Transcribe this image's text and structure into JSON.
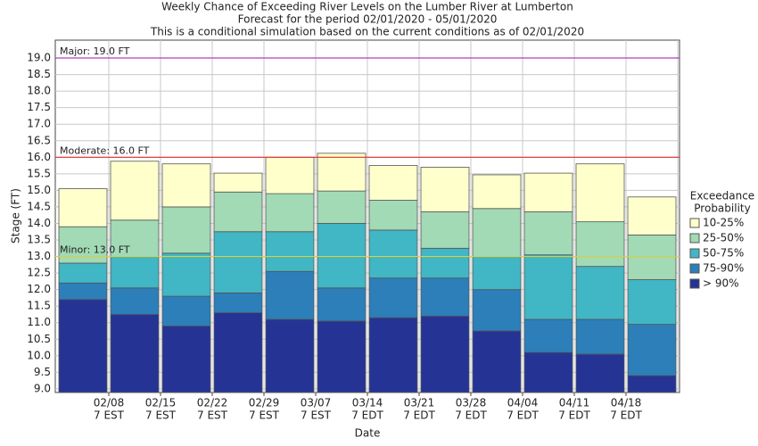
{
  "chart_data": {
    "type": "floating-bar",
    "title": "Weekly Chance of Exceeding River Levels on the Lumber River at Lumberton",
    "subtitle": "Forecast for the period 02/01/2020 - 05/01/2020",
    "subtitle2": "This is a conditional simulation based on the current conditions as of 02/01/2020",
    "x_label": "Date",
    "y_label": "Stage (FT)",
    "legend_title": [
      "Exceedance",
      "Probability"
    ],
    "categories": [
      [
        "02/08",
        "7 EST"
      ],
      [
        "02/15",
        "7 EST"
      ],
      [
        "02/22",
        "7 EST"
      ],
      [
        "02/29",
        "7 EST"
      ],
      [
        "03/07",
        "7 EST"
      ],
      [
        "03/14",
        "7 EDT"
      ],
      [
        "03/21",
        "7 EDT"
      ],
      [
        "03/28",
        "7 EDT"
      ],
      [
        "04/04",
        "7 EDT"
      ],
      [
        "04/11",
        "7 EDT"
      ],
      [
        "04/18",
        "7 EDT"
      ],
      null
    ],
    "series": [
      {
        "name": "> 90%",
        "color": "#253494",
        "values": [
          11.7,
          11.25,
          10.9,
          11.3,
          11.1,
          11.05,
          11.15,
          11.2,
          10.75,
          10.1,
          10.05,
          9.4
        ]
      },
      {
        "name": "75-90%",
        "color": "#2c7fb8",
        "values": [
          12.2,
          12.05,
          11.8,
          11.9,
          12.55,
          12.05,
          12.35,
          12.35,
          12.0,
          11.1,
          11.1,
          10.95
        ]
      },
      {
        "name": "50-75%",
        "color": "#41b6c4",
        "values": [
          12.8,
          13.0,
          13.1,
          13.75,
          13.75,
          14.0,
          13.8,
          13.25,
          13.0,
          13.05,
          12.7,
          12.3
        ]
      },
      {
        "name": "25-50%",
        "color": "#a1dab4",
        "values": [
          13.9,
          14.1,
          14.5,
          14.95,
          14.9,
          14.98,
          14.7,
          14.35,
          14.45,
          14.35,
          14.05,
          13.65
        ]
      },
      {
        "name": "10-25%",
        "color": "#ffffcc",
        "values": [
          15.05,
          15.88,
          15.8,
          15.52,
          16.0,
          16.12,
          15.75,
          15.7,
          15.47,
          15.52,
          15.8,
          14.8
        ]
      }
    ],
    "thresholds": [
      {
        "label": "Major: 19.0 FT",
        "value": 19.0,
        "color": "#b040c0"
      },
      {
        "label": "Moderate: 16.0 FT",
        "value": 16.0,
        "color": "#e03030"
      },
      {
        "label": "Minor: 13.0 FT",
        "value": 13.0,
        "color": "#d8d040"
      }
    ],
    "ylim": [
      8.89,
      19.54
    ],
    "yticks": [
      {
        "value": 9,
        "label": "9.0"
      },
      9.5,
      {
        "value": 10,
        "label": "10.0"
      },
      10.5,
      {
        "value": 11,
        "label": "11.0"
      },
      11.5,
      {
        "value": 12,
        "label": "12.0"
      },
      12.5,
      {
        "value": 13,
        "label": "13.0"
      },
      13.5,
      {
        "value": 14,
        "label": "14.0"
      },
      14.5,
      {
        "value": 15,
        "label": "15.0"
      },
      15.5,
      {
        "value": 16,
        "label": "16.0"
      },
      16.5,
      {
        "value": 17,
        "label": "17.0"
      },
      17.5,
      {
        "value": 18,
        "label": "18.0"
      },
      18.5,
      {
        "value": 19,
        "label": "19.0"
      }
    ],
    "grid": true
  }
}
